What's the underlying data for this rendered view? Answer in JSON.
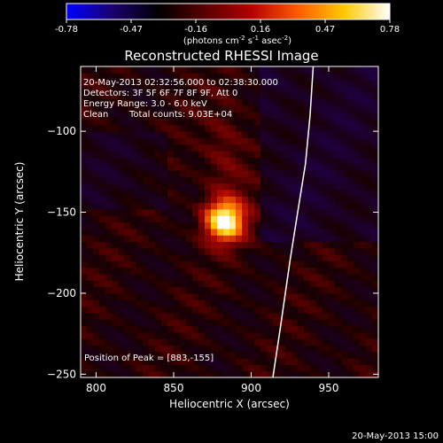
{
  "colorbar": {
    "ticks": [
      "-0.78",
      "-0.47",
      "-0.16",
      "0.16",
      "0.47",
      "0.78"
    ],
    "unit_html": "(photons cm<tspan baseline-shift='super' font-size='7'>-2</tspan> s<tspan baseline-shift='super' font-size='7'>-1</tspan> asec<tspan baseline-shift='super' font-size='7'>-2</tspan>)",
    "stops": [
      "#0000ff",
      "#1a006e",
      "#000000",
      "#5a0000",
      "#b40000",
      "#ff5a00",
      "#ffc800",
      "#ffffff"
    ]
  },
  "header": {
    "time_range": "20-May-2013 02:32:56.000 to 02:38:30.000",
    "detectors": "Detectors: 3F 5F 6F 7F 8F 9F, Att 0",
    "energy": "Energy Range: 3.0 - 6.0 keV",
    "clean_label": "Clean",
    "counts": "Total counts: 9.03E+04"
  },
  "footer": {
    "peak": "Position of Peak = [883,-155]",
    "timestamp": "20-May-2013 15:00"
  },
  "chart_data": {
    "type": "heatmap",
    "title": "Reconstructed RHESSI Image",
    "xlabel": "Heliocentric X (arcsec)",
    "ylabel": "Heliocentric Y (arcsec)",
    "xlim": [
      790,
      982
    ],
    "ylim": [
      -252,
      -60
    ],
    "xticks": [
      800,
      850,
      900,
      950
    ],
    "yticks": [
      -100,
      -150,
      -200,
      -250
    ],
    "value_range": [
      -0.78,
      0.78
    ],
    "peak": {
      "x": 883,
      "y": -155
    },
    "limb": [
      [
        940,
        -60
      ],
      [
        938,
        -90
      ],
      [
        935,
        -120
      ],
      [
        930,
        -150
      ],
      [
        925,
        -180
      ],
      [
        919,
        -220
      ],
      [
        914,
        -252
      ]
    ]
  }
}
